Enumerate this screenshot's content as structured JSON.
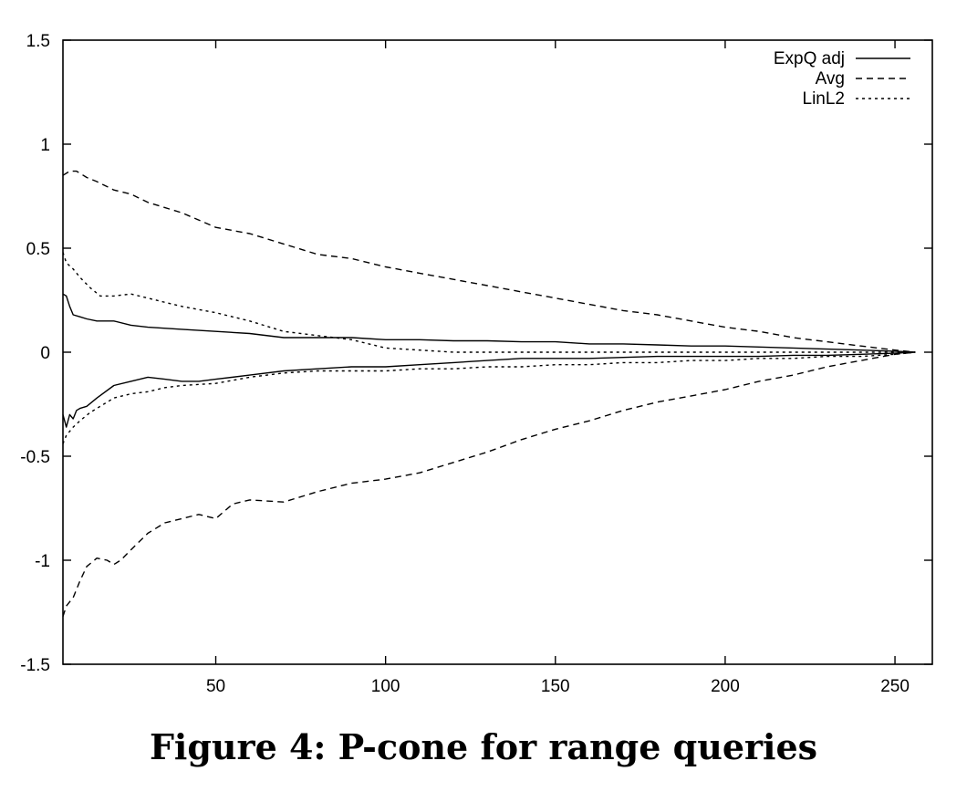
{
  "caption": "Figure 4: P-cone for range queries",
  "chart_data": {
    "type": "line",
    "title": "",
    "xlabel": "",
    "ylabel": "",
    "xlim": [
      5,
      261
    ],
    "ylim": [
      -1.5,
      1.5
    ],
    "xticks": [
      50,
      100,
      150,
      200,
      250
    ],
    "yticks": [
      -1.5,
      -1,
      -0.5,
      0,
      0.5,
      1,
      1.5
    ],
    "xtick_labels": [
      "50",
      "100",
      "150",
      "200",
      "250"
    ],
    "ytick_labels": [
      "-1.5",
      "-1",
      "-0.5",
      "0",
      "0.5",
      "1",
      "1.5"
    ],
    "grid": false,
    "legend_position": "top-right",
    "series": [
      {
        "name": "ExpQ adj",
        "dash": "solid",
        "upper": {
          "x": [
            5,
            6,
            7,
            8,
            10,
            12,
            15,
            20,
            25,
            30,
            40,
            50,
            60,
            70,
            80,
            90,
            100,
            110,
            120,
            130,
            140,
            150,
            160,
            170,
            180,
            190,
            200,
            210,
            220,
            230,
            240,
            250,
            256
          ],
          "y": [
            0.28,
            0.27,
            0.22,
            0.18,
            0.17,
            0.16,
            0.15,
            0.15,
            0.13,
            0.12,
            0.11,
            0.1,
            0.09,
            0.07,
            0.07,
            0.07,
            0.06,
            0.06,
            0.055,
            0.055,
            0.05,
            0.05,
            0.04,
            0.04,
            0.035,
            0.03,
            0.03,
            0.025,
            0.02,
            0.015,
            0.01,
            0.005,
            0
          ]
        },
        "lower": {
          "x": [
            5,
            6,
            7,
            8,
            9,
            10,
            12,
            15,
            20,
            25,
            30,
            35,
            40,
            45,
            50,
            60,
            70,
            80,
            90,
            100,
            110,
            120,
            130,
            140,
            150,
            160,
            170,
            180,
            190,
            200,
            210,
            220,
            230,
            240,
            250,
            256
          ],
          "y": [
            -0.3,
            -0.36,
            -0.3,
            -0.32,
            -0.28,
            -0.27,
            -0.26,
            -0.22,
            -0.16,
            -0.14,
            -0.12,
            -0.13,
            -0.14,
            -0.14,
            -0.13,
            -0.11,
            -0.09,
            -0.08,
            -0.07,
            -0.07,
            -0.06,
            -0.05,
            -0.04,
            -0.03,
            -0.03,
            -0.03,
            -0.025,
            -0.02,
            -0.02,
            -0.02,
            -0.02,
            -0.015,
            -0.015,
            -0.01,
            -0.005,
            0
          ]
        }
      },
      {
        "name": "Avg",
        "dash": "dashed",
        "upper": {
          "x": [
            5,
            7,
            9,
            12,
            15,
            20,
            25,
            30,
            40,
            50,
            60,
            70,
            80,
            90,
            100,
            110,
            120,
            130,
            140,
            150,
            160,
            170,
            180,
            190,
            200,
            210,
            220,
            230,
            240,
            250,
            256
          ],
          "y": [
            0.85,
            0.87,
            0.87,
            0.84,
            0.82,
            0.78,
            0.76,
            0.72,
            0.67,
            0.6,
            0.57,
            0.52,
            0.47,
            0.45,
            0.41,
            0.38,
            0.35,
            0.32,
            0.29,
            0.26,
            0.23,
            0.2,
            0.18,
            0.15,
            0.12,
            0.1,
            0.07,
            0.05,
            0.03,
            0.01,
            0
          ]
        },
        "lower": {
          "x": [
            5,
            6,
            7,
            8,
            10,
            12,
            15,
            18,
            20,
            22,
            25,
            30,
            35,
            40,
            45,
            50,
            55,
            60,
            70,
            80,
            90,
            100,
            110,
            120,
            130,
            140,
            150,
            160,
            170,
            180,
            190,
            200,
            210,
            220,
            230,
            240,
            250,
            256
          ],
          "y": [
            -1.27,
            -1.22,
            -1.2,
            -1.18,
            -1.1,
            -1.03,
            -0.99,
            -1.0,
            -1.02,
            -1.0,
            -0.95,
            -0.87,
            -0.82,
            -0.8,
            -0.78,
            -0.8,
            -0.73,
            -0.71,
            -0.72,
            -0.67,
            -0.63,
            -0.61,
            -0.58,
            -0.53,
            -0.48,
            -0.42,
            -0.37,
            -0.33,
            -0.28,
            -0.24,
            -0.21,
            -0.18,
            -0.14,
            -0.11,
            -0.07,
            -0.04,
            -0.01,
            0
          ]
        }
      },
      {
        "name": "LinL2",
        "dash": "dotted",
        "upper": {
          "x": [
            5,
            6,
            8,
            10,
            13,
            16,
            20,
            25,
            30,
            35,
            40,
            50,
            60,
            70,
            80,
            90,
            100,
            110,
            120,
            130,
            140,
            150,
            160,
            170,
            180,
            190,
            200,
            210,
            220,
            230,
            240,
            250,
            256
          ],
          "y": [
            0.48,
            0.43,
            0.4,
            0.36,
            0.31,
            0.27,
            0.27,
            0.28,
            0.26,
            0.24,
            0.22,
            0.19,
            0.15,
            0.1,
            0.08,
            0.06,
            0.02,
            0.01,
            0,
            0,
            0,
            0,
            0,
            0,
            0,
            0,
            0,
            0,
            0,
            0,
            0,
            0,
            0
          ]
        },
        "lower": {
          "x": [
            5,
            6,
            8,
            10,
            13,
            16,
            20,
            25,
            30,
            35,
            40,
            50,
            60,
            70,
            80,
            90,
            100,
            110,
            120,
            130,
            140,
            150,
            160,
            170,
            180,
            190,
            200,
            210,
            220,
            230,
            240,
            250,
            256
          ],
          "y": [
            -0.44,
            -0.4,
            -0.36,
            -0.33,
            -0.29,
            -0.26,
            -0.22,
            -0.2,
            -0.19,
            -0.17,
            -0.16,
            -0.15,
            -0.12,
            -0.1,
            -0.09,
            -0.09,
            -0.09,
            -0.08,
            -0.08,
            -0.07,
            -0.07,
            -0.06,
            -0.06,
            -0.05,
            -0.05,
            -0.04,
            -0.04,
            -0.03,
            -0.03,
            -0.02,
            -0.02,
            -0.01,
            0
          ]
        }
      }
    ]
  }
}
